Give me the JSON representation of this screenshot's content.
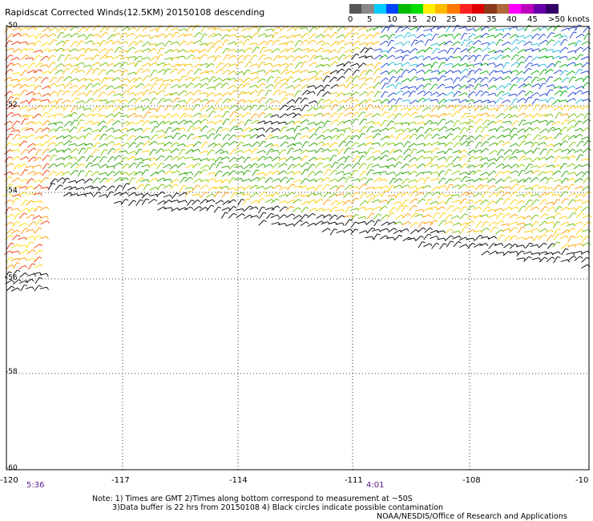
{
  "title": "Rapidscat Corrected Winds(12.5KM) 20150108 descending",
  "legend": {
    "colors": [
      "#555555",
      "#888888",
      "#00ccff",
      "#0044ff",
      "#00bb00",
      "#00dd00",
      "#ffee00",
      "#ffbb00",
      "#ff7700",
      "#ff2222",
      "#dd0000",
      "#8a3a1a",
      "#b06a3a",
      "#ff00ff",
      "#bb00bb",
      "#6600aa",
      "#330066"
    ],
    "labels": [
      "0",
      "5",
      "10",
      "15",
      "20",
      "25",
      "30",
      "35",
      "40",
      "45",
      ">50 knots"
    ]
  },
  "lat_labels": [
    "-50",
    "-52",
    "-54",
    "-56",
    "-58",
    "-60"
  ],
  "lon_labels": [
    "-120",
    "-117",
    "-114",
    "-111",
    "-108",
    "-10"
  ],
  "times": [
    "5:36",
    "4:01"
  ],
  "notes": [
    "Note: 1) Times are GMT 2)Times along bottom correspond to measurement at ~50S",
    "3)Data buffer is 22 hrs from 20150108 4) Black circles indicate possible contamination",
    "NOAA/NESDIS/Office of Research and Applications"
  ]
}
